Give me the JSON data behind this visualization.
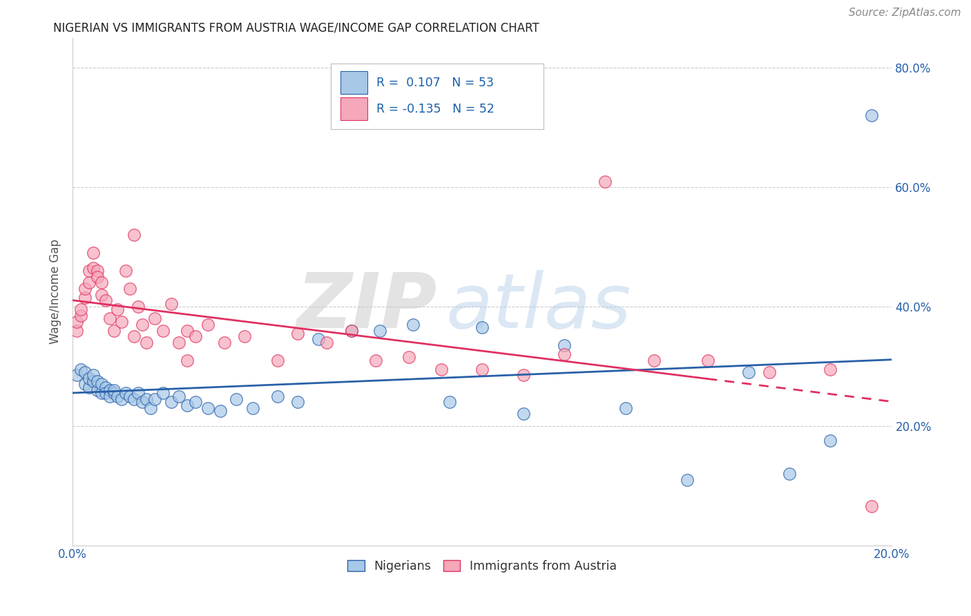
{
  "title": "NIGERIAN VS IMMIGRANTS FROM AUSTRIA WAGE/INCOME GAP CORRELATION CHART",
  "source": "Source: ZipAtlas.com",
  "ylabel": "Wage/Income Gap",
  "xlim": [
    0.0,
    0.2
  ],
  "ylim": [
    0.0,
    0.85
  ],
  "blue_color": "#A8C8E8",
  "pink_color": "#F4A8BA",
  "blue_line_color": "#2860A8",
  "pink_line_color": "#E03060",
  "watermark_zip": "ZIP",
  "watermark_atlas": "atlas",
  "legend_label1": "Nigerians",
  "legend_label2": "Immigrants from Austria",
  "nigerian_x": [
    0.001,
    0.002,
    0.003,
    0.003,
    0.004,
    0.004,
    0.005,
    0.005,
    0.006,
    0.006,
    0.007,
    0.007,
    0.008,
    0.008,
    0.009,
    0.009,
    0.01,
    0.01,
    0.011,
    0.012,
    0.013,
    0.014,
    0.015,
    0.016,
    0.017,
    0.018,
    0.019,
    0.02,
    0.022,
    0.024,
    0.026,
    0.028,
    0.03,
    0.033,
    0.036,
    0.04,
    0.044,
    0.05,
    0.055,
    0.06,
    0.068,
    0.075,
    0.083,
    0.092,
    0.1,
    0.11,
    0.12,
    0.135,
    0.15,
    0.165,
    0.175,
    0.185,
    0.195
  ],
  "nigerian_y": [
    0.285,
    0.295,
    0.27,
    0.29,
    0.265,
    0.28,
    0.275,
    0.285,
    0.26,
    0.275,
    0.255,
    0.27,
    0.265,
    0.255,
    0.26,
    0.25,
    0.255,
    0.26,
    0.25,
    0.245,
    0.255,
    0.25,
    0.245,
    0.255,
    0.24,
    0.245,
    0.23,
    0.245,
    0.255,
    0.24,
    0.25,
    0.235,
    0.24,
    0.23,
    0.225,
    0.245,
    0.23,
    0.25,
    0.24,
    0.345,
    0.36,
    0.36,
    0.37,
    0.24,
    0.365,
    0.22,
    0.335,
    0.23,
    0.11,
    0.29,
    0.12,
    0.175,
    0.72
  ],
  "austria_x": [
    0.001,
    0.001,
    0.002,
    0.002,
    0.003,
    0.003,
    0.004,
    0.004,
    0.005,
    0.005,
    0.006,
    0.006,
    0.007,
    0.007,
    0.008,
    0.009,
    0.01,
    0.011,
    0.012,
    0.013,
    0.014,
    0.015,
    0.016,
    0.017,
    0.018,
    0.02,
    0.022,
    0.024,
    0.026,
    0.028,
    0.03,
    0.033,
    0.037,
    0.042,
    0.05,
    0.055,
    0.062,
    0.068,
    0.074,
    0.082,
    0.09,
    0.1,
    0.11,
    0.12,
    0.13,
    0.142,
    0.155,
    0.17,
    0.185,
    0.195,
    0.015,
    0.028
  ],
  "austria_y": [
    0.36,
    0.375,
    0.385,
    0.395,
    0.415,
    0.43,
    0.44,
    0.46,
    0.465,
    0.49,
    0.46,
    0.45,
    0.44,
    0.42,
    0.41,
    0.38,
    0.36,
    0.395,
    0.375,
    0.46,
    0.43,
    0.35,
    0.4,
    0.37,
    0.34,
    0.38,
    0.36,
    0.405,
    0.34,
    0.36,
    0.35,
    0.37,
    0.34,
    0.35,
    0.31,
    0.355,
    0.34,
    0.36,
    0.31,
    0.315,
    0.295,
    0.295,
    0.285,
    0.32,
    0.61,
    0.31,
    0.31,
    0.29,
    0.295,
    0.065,
    0.52,
    0.31
  ]
}
